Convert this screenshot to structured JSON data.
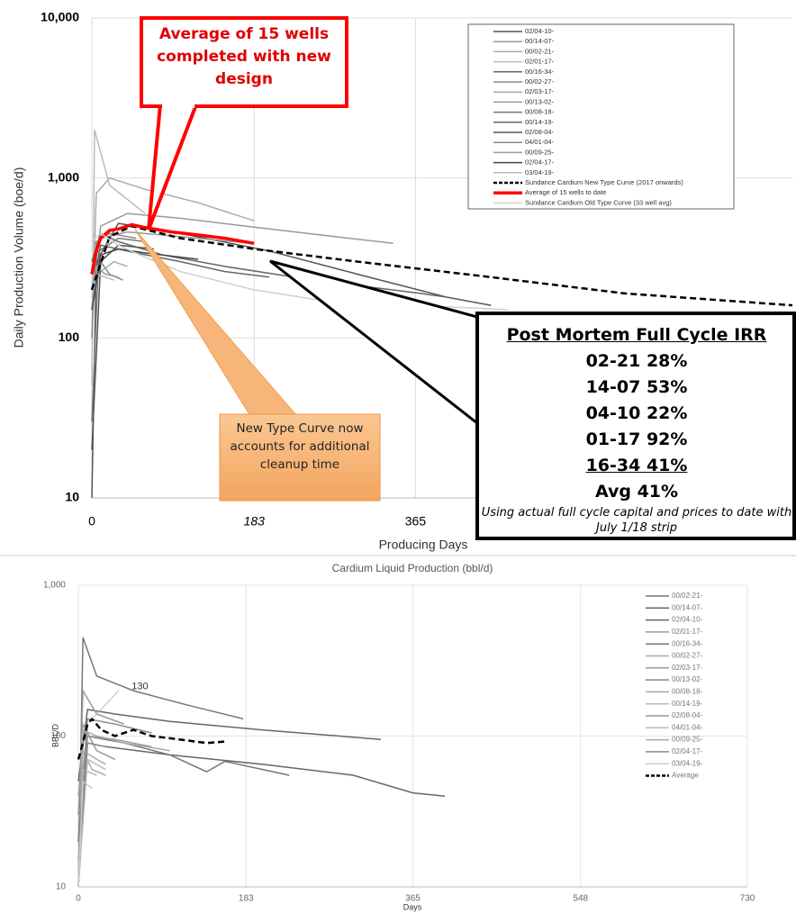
{
  "chart_data": [
    {
      "type": "line",
      "log_scale": true,
      "grid": true,
      "legend": "upper-right",
      "y_label": "Daily Production Volume (boe/d)",
      "x_label": "Producing Days",
      "xlim": [
        0,
        790
      ],
      "xticks": [
        0,
        183,
        365
      ],
      "ylim": [
        10,
        10000
      ],
      "yticks": [
        10,
        100,
        {
          "value": 1000,
          "label": "1,000"
        },
        {
          "value": 10000,
          "label": "10,000"
        }
      ],
      "series": [
        {
          "name": "02/04-10-",
          "color": "#555555",
          "line_style": "solid",
          "x": [
            0,
            5,
            30,
            100,
            200,
            300,
            400,
            450
          ],
          "values": [
            10,
            300,
            520,
            450,
            350,
            250,
            180,
            160
          ]
        },
        {
          "name": "00/14-07-",
          "color": "#999999",
          "line_style": "solid",
          "x": [
            0,
            10,
            40,
            100,
            200,
            340
          ],
          "values": [
            200,
            500,
            600,
            560,
            480,
            390
          ]
        },
        {
          "name": "00/02-21-",
          "color": "#aaaaaa",
          "line_style": "solid",
          "x": [
            0,
            5,
            20,
            60,
            120,
            183
          ],
          "values": [
            100,
            800,
            1000,
            850,
            700,
            540
          ]
        },
        {
          "name": "02/01-17-",
          "color": "#bbbbbb",
          "line_style": "solid",
          "x": [
            0,
            3,
            20,
            60
          ],
          "values": [
            50,
            2000,
            900,
            600
          ]
        },
        {
          "name": "00/16-34-",
          "color": "#666666",
          "line_style": "solid",
          "x": [
            0,
            10,
            30,
            80,
            150,
            250,
            370,
            400
          ],
          "values": [
            300,
            450,
            400,
            330,
            280,
            230,
            190,
            180
          ]
        },
        {
          "name": "00/02-27-",
          "color": "#888888",
          "line_style": "solid",
          "x": [
            0,
            10,
            20,
            35
          ],
          "values": [
            150,
            300,
            250,
            230
          ]
        },
        {
          "name": "02/03-17-",
          "color": "#aaaaaa",
          "line_style": "solid",
          "x": [
            0,
            10,
            25,
            40
          ],
          "values": [
            200,
            260,
            300,
            280
          ]
        },
        {
          "name": "00/13-02-",
          "color": "#999999",
          "line_style": "solid",
          "x": [
            0,
            10,
            40,
            100,
            180
          ],
          "values": [
            250,
            420,
            460,
            430,
            390
          ]
        },
        {
          "name": "00/08-18-",
          "color": "#777777",
          "line_style": "solid",
          "x": [
            0,
            8,
            30,
            60
          ],
          "values": [
            30,
            350,
            420,
            400
          ]
        },
        {
          "name": "00/14-19-",
          "color": "#666666",
          "line_style": "solid",
          "x": [
            0,
            10,
            50,
            100,
            150,
            200
          ],
          "values": [
            200,
            380,
            340,
            300,
            260,
            240
          ]
        },
        {
          "name": "02/08-04-",
          "color": "#555555",
          "line_style": "solid",
          "x": [
            0,
            10,
            30,
            70
          ],
          "values": [
            20,
            300,
            380,
            360
          ]
        },
        {
          "name": "04/01-04-",
          "color": "#888888",
          "line_style": "solid",
          "x": [
            0,
            5,
            20,
            50
          ],
          "values": [
            100,
            400,
            450,
            420
          ]
        },
        {
          "name": "00/09-25-",
          "color": "#999999",
          "line_style": "solid",
          "x": [
            0,
            5,
            15,
            30
          ],
          "values": [
            200,
            280,
            250,
            240
          ]
        },
        {
          "name": "02/04-17-",
          "color": "#444444",
          "line_style": "solid",
          "x": [
            0,
            10,
            30,
            60,
            120
          ],
          "values": [
            150,
            330,
            360,
            340,
            310
          ]
        },
        {
          "name": "03/04-19-",
          "color": "#bbbbbb",
          "line_style": "solid",
          "x": [
            0,
            5,
            15,
            25
          ],
          "values": [
            180,
            250,
            240,
            230
          ]
        },
        {
          "name": "Sundance Cardium New Type Curve (2017 onwards)",
          "color": "#000000",
          "line_style": "dashed",
          "x": [
            0,
            20,
            45,
            100,
            183,
            300,
            450,
            600,
            790
          ],
          "values": [
            200,
            430,
            500,
            420,
            360,
            300,
            240,
            190,
            160
          ]
        },
        {
          "name": "Average of 15 wells to date",
          "color": "#ff0000",
          "line_style": "thick",
          "x": [
            0,
            5,
            10,
            20,
            30,
            45,
            60,
            90,
            120,
            150,
            183
          ],
          "values": [
            250,
            350,
            420,
            470,
            480,
            510,
            490,
            460,
            440,
            420,
            390
          ]
        },
        {
          "name": "Sundance Cardium Old Type Curve (33 well avg)",
          "color": "#d0d0d0",
          "line_style": "solid",
          "x": [
            0,
            10,
            30,
            60,
            100,
            183,
            250,
            365,
            470
          ],
          "values": [
            400,
            450,
            380,
            320,
            260,
            200,
            175,
            160,
            150
          ]
        }
      ],
      "callout_average": "Average of 15 wells completed with new design",
      "callout_type_curve": "New Type Curve now accounts for additional cleanup time",
      "irr_box": {
        "title": "Post Mortem Full Cycle IRR",
        "rows": [
          "02-21 28%",
          "14-07 53%",
          "04-10 22%",
          "01-17 92%",
          "16-34 41%"
        ],
        "average": "Avg 41%",
        "note": "Using actual full cycle capital and prices to date with July 1/18 strip"
      }
    },
    {
      "type": "line",
      "log_scale": true,
      "grid": true,
      "legend": "right",
      "title": "Cardium Liquid Production (bbl/d)",
      "y_label": "BBL/D",
      "x_label": "Days",
      "xlim": [
        0,
        730
      ],
      "xticks": [
        0,
        183,
        365,
        548,
        730
      ],
      "ylim": [
        10,
        1000
      ],
      "yticks": [
        10,
        100,
        {
          "value": 1000,
          "label": "1,000"
        }
      ],
      "series": [
        {
          "name": "00/02-21-",
          "color": "#777777",
          "line_style": "solid",
          "x": [
            0,
            5,
            20,
            60,
            120,
            180
          ],
          "values": [
            10,
            450,
            250,
            200,
            160,
            130
          ]
        },
        {
          "name": "00/14-07-",
          "color": "#666666",
          "line_style": "solid",
          "x": [
            0,
            10,
            40,
            100,
            200,
            330
          ],
          "values": [
            50,
            150,
            140,
            125,
            110,
            95
          ]
        },
        {
          "name": "02/04-10-",
          "color": "#666666",
          "line_style": "solid",
          "x": [
            0,
            10,
            30,
            100,
            200,
            300,
            365,
            400
          ],
          "values": [
            10,
            90,
            85,
            75,
            65,
            55,
            42,
            40
          ]
        },
        {
          "name": "02/01-17-",
          "color": "#999999",
          "line_style": "solid",
          "x": [
            0,
            5,
            20,
            50
          ],
          "values": [
            20,
            200,
            140,
            120
          ]
        },
        {
          "name": "00/16-34-",
          "color": "#777777",
          "line_style": "solid",
          "x": [
            0,
            10,
            50,
            100,
            140,
            160,
            230
          ],
          "values": [
            30,
            100,
            90,
            75,
            58,
            68,
            55
          ]
        },
        {
          "name": "00/02-27-",
          "color": "#aaaaaa",
          "line_style": "solid",
          "x": [
            0,
            5,
            15,
            30
          ],
          "values": [
            40,
            80,
            60,
            55
          ]
        },
        {
          "name": "02/03-17-",
          "color": "#999999",
          "line_style": "solid",
          "x": [
            0,
            5,
            20,
            40
          ],
          "values": [
            30,
            120,
            80,
            70
          ]
        },
        {
          "name": "00/13-02-",
          "color": "#888888",
          "line_style": "solid",
          "x": [
            0,
            10,
            40,
            80
          ],
          "values": [
            20,
            130,
            120,
            105
          ]
        },
        {
          "name": "00/08-18-",
          "color": "#aaaaaa",
          "line_style": "solid",
          "x": [
            0,
            5,
            20,
            50,
            100
          ],
          "values": [
            10,
            110,
            100,
            90,
            80
          ]
        },
        {
          "name": "00/14-19-",
          "color": "#bbbbbb",
          "line_style": "solid",
          "x": [
            0,
            10,
            30
          ],
          "values": [
            10,
            70,
            60
          ]
        },
        {
          "name": "02/08-04-",
          "color": "#999999",
          "line_style": "solid",
          "x": [
            0,
            10,
            40,
            80
          ],
          "values": [
            15,
            100,
            95,
            85
          ]
        },
        {
          "name": "04/01-04-",
          "color": "#bbbbbb",
          "line_style": "solid",
          "x": [
            0,
            5,
            20
          ],
          "values": [
            10,
            60,
            55
          ]
        },
        {
          "name": "00/09-25-",
          "color": "#aaaaaa",
          "line_style": "solid",
          "x": [
            0,
            5,
            20,
            30
          ],
          "values": [
            10,
            80,
            70,
            65
          ]
        },
        {
          "name": "02/04-17-",
          "color": "#888888",
          "line_style": "solid",
          "x": [
            0,
            10,
            30
          ],
          "values": [
            20,
            90,
            85
          ]
        },
        {
          "name": "03/04-19-",
          "color": "#cccccc",
          "line_style": "solid",
          "x": [
            0,
            5,
            15
          ],
          "values": [
            10,
            50,
            45
          ]
        },
        {
          "name": "Average",
          "color": "#000000",
          "line_style": "dashed",
          "peak_label": true,
          "x": [
            0,
            5,
            10,
            15,
            25,
            40,
            60,
            80,
            110,
            140,
            160
          ],
          "values": [
            70,
            90,
            120,
            130,
            110,
            100,
            110,
            100,
            95,
            90,
            92
          ]
        }
      ]
    }
  ]
}
